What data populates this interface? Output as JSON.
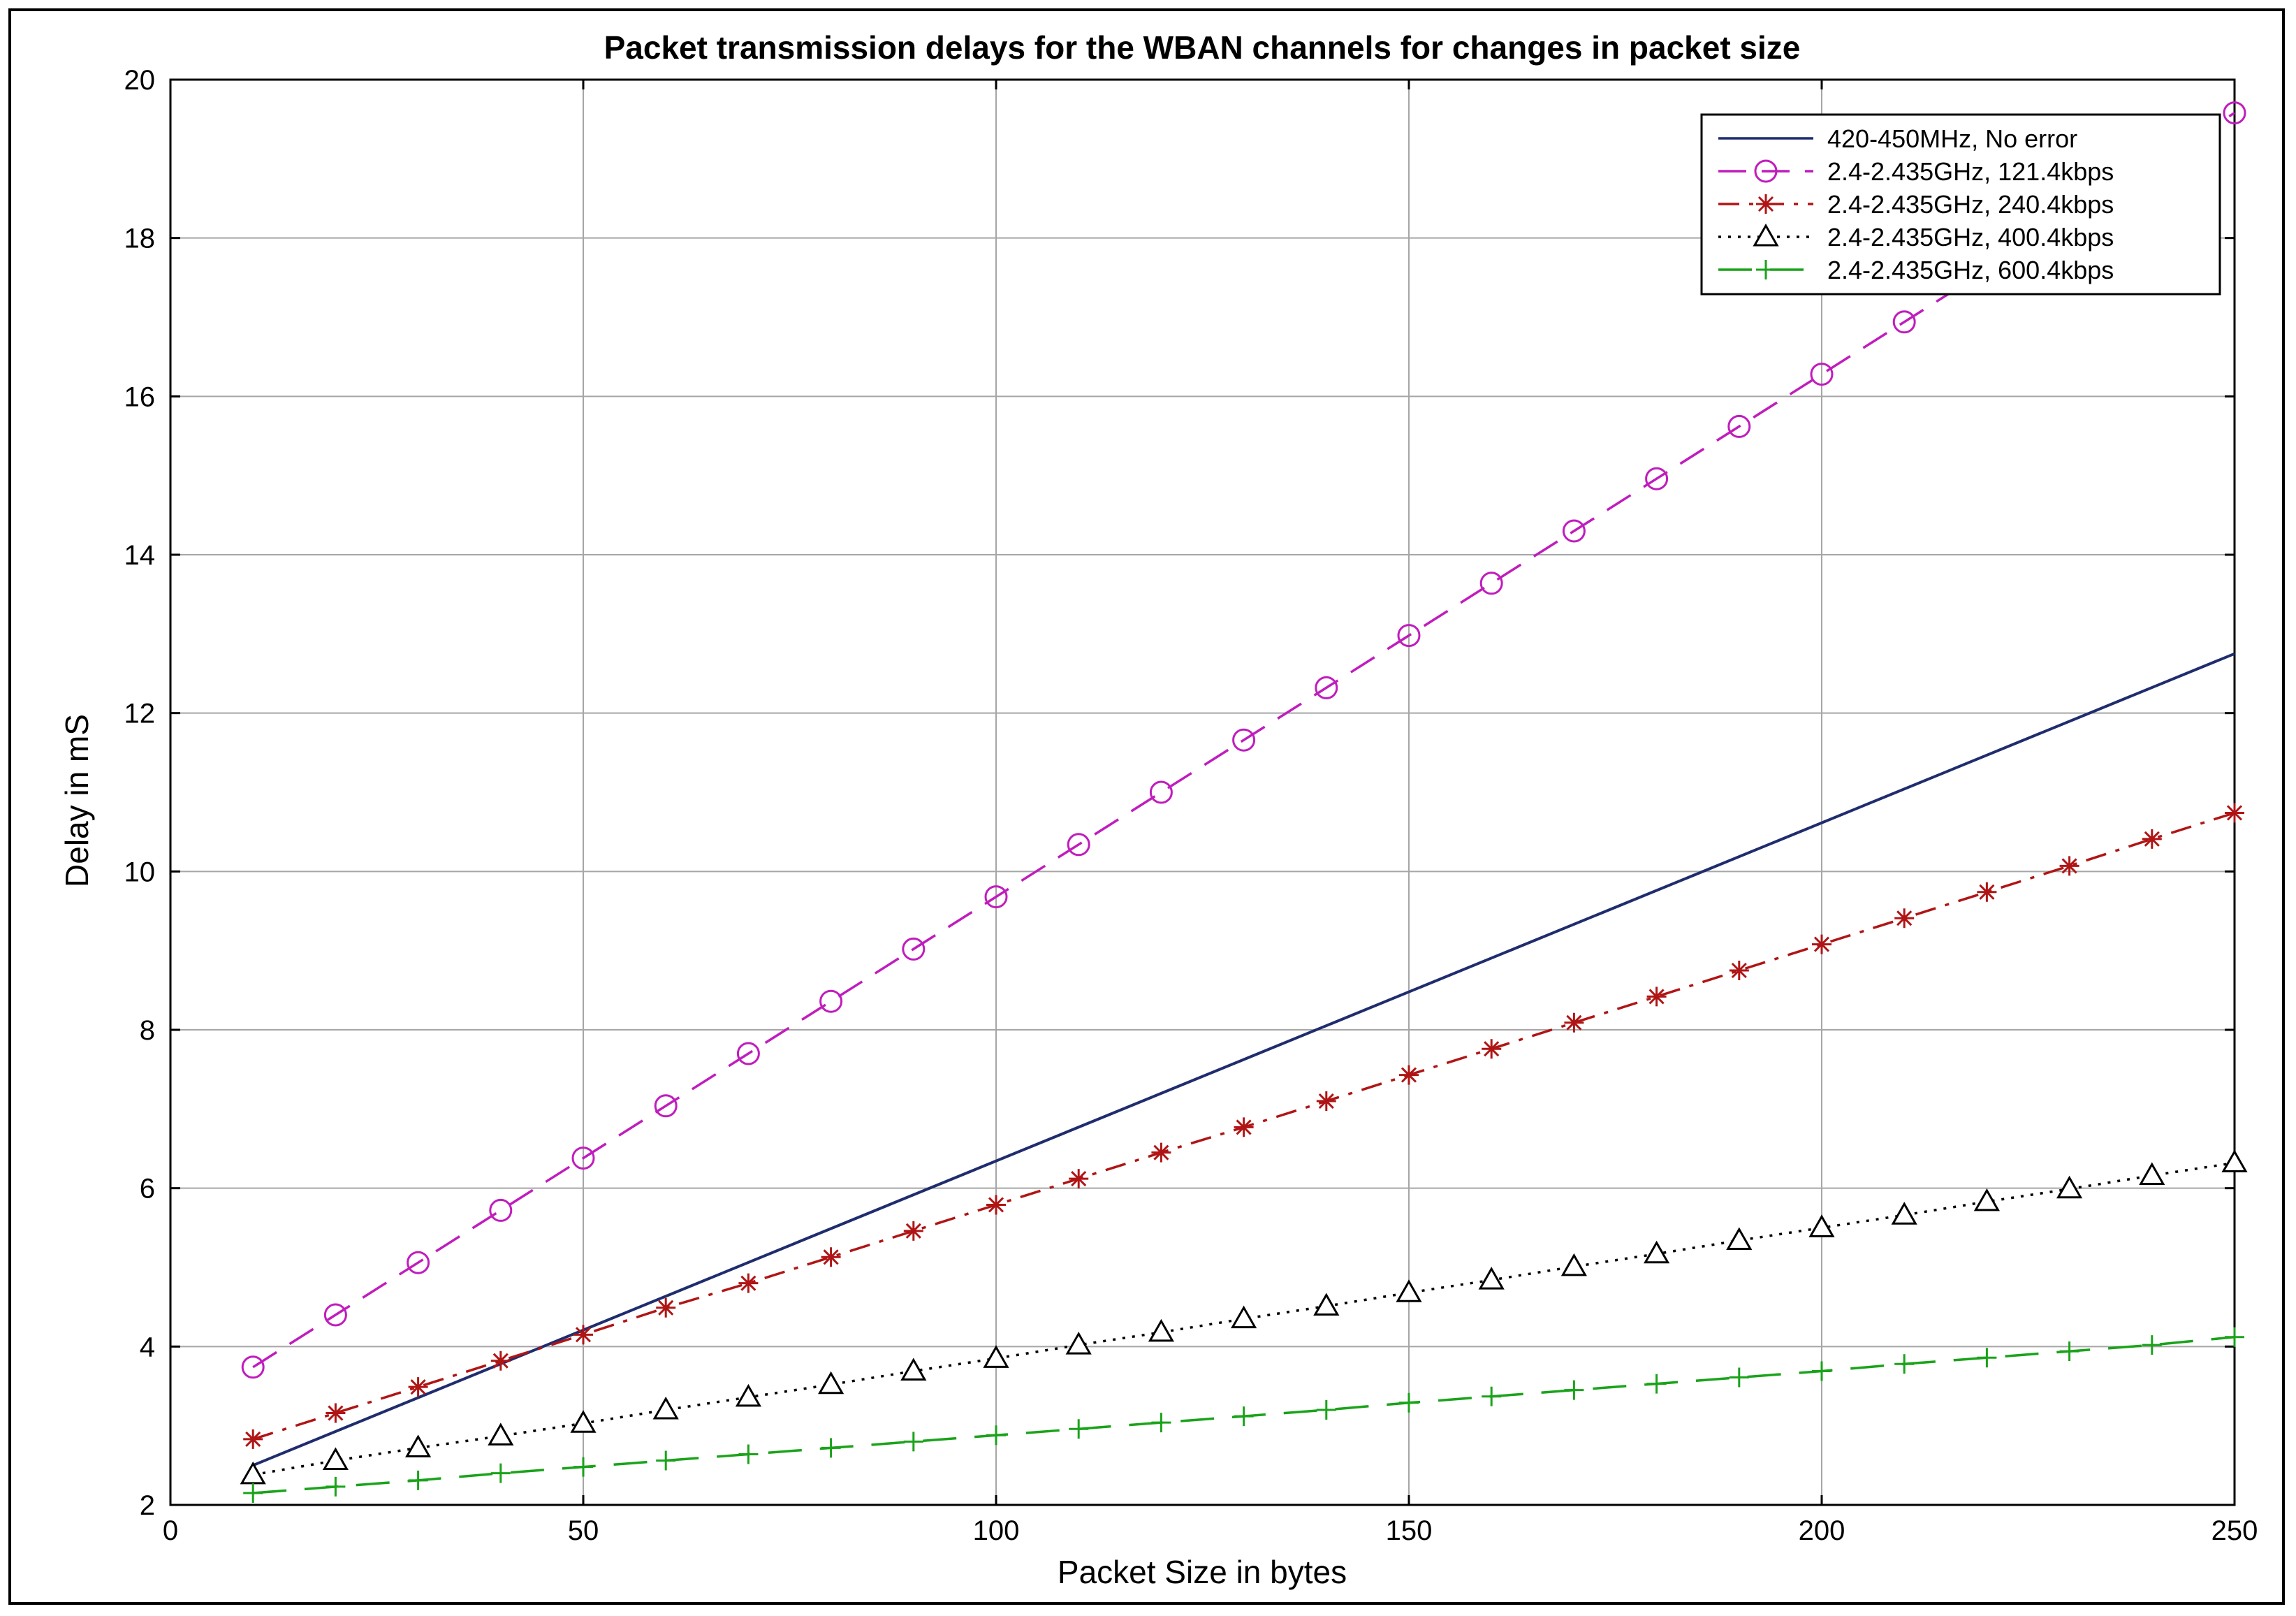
{
  "chart_data": {
    "type": "line",
    "title": "Packet transmission delays for the WBAN channels for changes in packet size",
    "xlabel": "Packet Size in bytes",
    "ylabel": "Delay in mS",
    "xlim": [
      0,
      250
    ],
    "ylim": [
      2,
      20
    ],
    "xticks": [
      0,
      50,
      100,
      150,
      200,
      250
    ],
    "yticks": [
      2,
      4,
      6,
      8,
      10,
      12,
      14,
      16,
      18,
      20
    ],
    "grid": true,
    "legend_position": "top-right",
    "series": [
      {
        "name": "420-450MHz, No error",
        "color": "#1f2d6e",
        "dash": "solid",
        "marker": "none",
        "x": [
          10,
          250
        ],
        "y": [
          2.5,
          12.75
        ]
      },
      {
        "name": "2.4-2.435GHz, 121.4kbps",
        "color": "#c01dbd",
        "dash": "dashed",
        "marker": "circle",
        "x": [
          10,
          20,
          30,
          40,
          50,
          60,
          70,
          80,
          90,
          100,
          110,
          120,
          130,
          140,
          150,
          160,
          170,
          180,
          190,
          200,
          210,
          220,
          230,
          240,
          250
        ],
        "y": [
          3.74,
          4.4,
          5.06,
          5.72,
          6.38,
          7.04,
          7.7,
          8.36,
          9.02,
          9.68,
          10.34,
          11.0,
          11.66,
          12.32,
          12.98,
          13.64,
          14.3,
          14.96,
          15.62,
          16.28,
          16.94,
          17.6,
          18.26,
          18.92,
          19.58
        ]
      },
      {
        "name": "2.4-2.435GHz, 240.4kbps",
        "color": "#b01515",
        "dash": "dashdot",
        "marker": "star",
        "x": [
          10,
          20,
          30,
          40,
          50,
          60,
          70,
          80,
          90,
          100,
          110,
          120,
          130,
          140,
          150,
          160,
          170,
          180,
          190,
          200,
          210,
          220,
          230,
          240,
          250
        ],
        "y": [
          2.83,
          3.16,
          3.49,
          3.82,
          4.15,
          4.49,
          4.8,
          5.13,
          5.46,
          5.79,
          6.12,
          6.45,
          6.77,
          7.1,
          7.43,
          7.76,
          8.09,
          8.42,
          8.75,
          9.08,
          9.41,
          9.74,
          10.07,
          10.41,
          10.74
        ]
      },
      {
        "name": "2.4-2.435GHz, 400.4kbps",
        "color": "#000000",
        "dash": "dotted",
        "marker": "triangle",
        "x": [
          10,
          20,
          30,
          40,
          50,
          60,
          70,
          80,
          90,
          100,
          110,
          120,
          130,
          140,
          150,
          160,
          170,
          180,
          190,
          200,
          210,
          220,
          230,
          240,
          250
        ],
        "y": [
          2.38,
          2.56,
          2.72,
          2.87,
          3.03,
          3.2,
          3.36,
          3.52,
          3.69,
          3.85,
          4.02,
          4.18,
          4.35,
          4.51,
          4.68,
          4.84,
          5.01,
          5.17,
          5.34,
          5.5,
          5.66,
          5.83,
          5.99,
          6.16,
          6.32
        ]
      },
      {
        "name": "2.4-2.435GHz, 600.4kbps",
        "color": "#1aa31a",
        "dash": "longdash",
        "marker": "plus",
        "x": [
          10,
          20,
          30,
          40,
          50,
          60,
          70,
          80,
          90,
          100,
          110,
          120,
          130,
          140,
          150,
          160,
          170,
          180,
          190,
          200,
          210,
          220,
          230,
          240,
          250
        ],
        "y": [
          2.15,
          2.23,
          2.31,
          2.4,
          2.48,
          2.56,
          2.64,
          2.72,
          2.8,
          2.88,
          2.96,
          3.04,
          3.12,
          3.2,
          3.29,
          3.37,
          3.45,
          3.53,
          3.61,
          3.69,
          3.78,
          3.86,
          3.94,
          4.02,
          4.12
        ]
      }
    ]
  }
}
